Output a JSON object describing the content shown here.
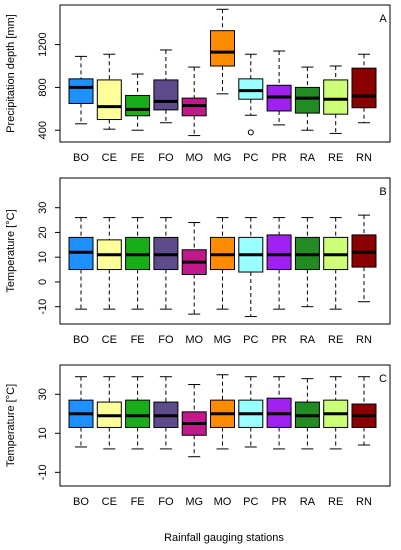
{
  "figure": {
    "xlabel": "Rainfall gauging stations"
  },
  "chart_data": [
    {
      "type": "boxplot",
      "panel_label": "A",
      "ylabel": "Precipitation depth [mm]",
      "ylim": [
        290,
        1570
      ],
      "yticks": [
        400,
        800,
        1200
      ],
      "categories": [
        "BO",
        "CE",
        "FE",
        "FO",
        "MO",
        "MG",
        "PC",
        "PR",
        "RA",
        "RE",
        "RN"
      ],
      "colors": [
        "#1e90ff",
        "#ffff99",
        "#1aad1a",
        "#5e4b8b",
        "#c0198a",
        "#ff8c00",
        "#99ffff",
        "#a020f0",
        "#228b22",
        "#ccff77",
        "#8b0000"
      ],
      "boxes": [
        {
          "min": 460,
          "q1": 650,
          "median": 800,
          "q3": 880,
          "max": 1090,
          "outliers": []
        },
        {
          "min": 410,
          "q1": 500,
          "median": 620,
          "q3": 870,
          "max": 1110,
          "outliers": []
        },
        {
          "min": 400,
          "q1": 535,
          "median": 595,
          "q3": 725,
          "max": 925,
          "outliers": []
        },
        {
          "min": 470,
          "q1": 590,
          "median": 670,
          "q3": 870,
          "max": 1150,
          "outliers": []
        },
        {
          "min": 350,
          "q1": 535,
          "median": 630,
          "q3": 700,
          "max": 990,
          "outliers": []
        },
        {
          "min": 740,
          "q1": 1000,
          "median": 1130,
          "q3": 1330,
          "max": 1530,
          "outliers": []
        },
        {
          "min": 540,
          "q1": 690,
          "median": 770,
          "q3": 880,
          "max": 1110,
          "outliers": [
            380
          ]
        },
        {
          "min": 450,
          "q1": 580,
          "median": 710,
          "q3": 820,
          "max": 1140,
          "outliers": []
        },
        {
          "min": 400,
          "q1": 560,
          "median": 700,
          "q3": 800,
          "max": 990,
          "outliers": []
        },
        {
          "min": 370,
          "q1": 550,
          "median": 690,
          "q3": 870,
          "max": 1000,
          "outliers": []
        },
        {
          "min": 470,
          "q1": 610,
          "median": 720,
          "q3": 980,
          "max": 1110,
          "outliers": []
        }
      ]
    },
    {
      "type": "boxplot",
      "panel_label": "B",
      "ylabel": "Temperature [°C]",
      "ylim": [
        -17,
        42
      ],
      "yticks": [
        -10,
        0,
        10,
        20,
        30
      ],
      "categories": [
        "BO",
        "CE",
        "FE",
        "FO",
        "MO",
        "MG",
        "PC",
        "PR",
        "RA",
        "RE",
        "RN"
      ],
      "colors": [
        "#1e90ff",
        "#ffff99",
        "#1aad1a",
        "#5e4b8b",
        "#c0198a",
        "#ff8c00",
        "#99ffff",
        "#a020f0",
        "#228b22",
        "#ccff77",
        "#8b0000"
      ],
      "boxes": [
        {
          "min": -11,
          "q1": 5,
          "median": 12,
          "q3": 18,
          "max": 26,
          "outliers": []
        },
        {
          "min": -11,
          "q1": 5,
          "median": 11,
          "q3": 17,
          "max": 26,
          "outliers": []
        },
        {
          "min": -11,
          "q1": 5,
          "median": 11,
          "q3": 18,
          "max": 26,
          "outliers": []
        },
        {
          "min": -11,
          "q1": 5,
          "median": 11,
          "q3": 18,
          "max": 26,
          "outliers": []
        },
        {
          "min": -13,
          "q1": 3,
          "median": 8,
          "q3": 13,
          "max": 24,
          "outliers": []
        },
        {
          "min": -11,
          "q1": 5,
          "median": 11,
          "q3": 18,
          "max": 26,
          "outliers": []
        },
        {
          "min": -14,
          "q1": 4,
          "median": 11,
          "q3": 18,
          "max": 26,
          "outliers": []
        },
        {
          "min": -11,
          "q1": 5,
          "median": 11,
          "q3": 19,
          "max": 26,
          "outliers": []
        },
        {
          "min": -10,
          "q1": 5,
          "median": 11,
          "q3": 18,
          "max": 26,
          "outliers": []
        },
        {
          "min": -11,
          "q1": 5,
          "median": 11,
          "q3": 18,
          "max": 26,
          "outliers": []
        },
        {
          "min": -8,
          "q1": 6,
          "median": 12,
          "q3": 19,
          "max": 27,
          "outliers": []
        }
      ]
    },
    {
      "type": "boxplot",
      "panel_label": "C",
      "ylabel": "Temperature [°C]",
      "ylim": [
        -17,
        45
      ],
      "yticks": [
        -10,
        10,
        30
      ],
      "categories": [
        "BO",
        "CE",
        "FE",
        "FO",
        "MG",
        "MO",
        "PC",
        "PR",
        "RA",
        "RE",
        "RN"
      ],
      "colors": [
        "#1e90ff",
        "#ffff99",
        "#1aad1a",
        "#5e4b8b",
        "#c0198a",
        "#ff8c00",
        "#99ffff",
        "#a020f0",
        "#228b22",
        "#ccff77",
        "#8b0000"
      ],
      "boxes": [
        {
          "min": 3,
          "q1": 13,
          "median": 20,
          "q3": 27,
          "max": 39,
          "outliers": []
        },
        {
          "min": 2,
          "q1": 13,
          "median": 19,
          "q3": 26,
          "max": 39,
          "outliers": []
        },
        {
          "min": 2,
          "q1": 13,
          "median": 19,
          "q3": 27,
          "max": 39,
          "outliers": []
        },
        {
          "min": 2,
          "q1": 13,
          "median": 19,
          "q3": 26,
          "max": 39,
          "outliers": []
        },
        {
          "min": -2,
          "q1": 9,
          "median": 15,
          "q3": 21,
          "max": 35,
          "outliers": []
        },
        {
          "min": 2,
          "q1": 13,
          "median": 20,
          "q3": 27,
          "max": 40,
          "outliers": []
        },
        {
          "min": 3,
          "q1": 13,
          "median": 20,
          "q3": 27,
          "max": 39,
          "outliers": []
        },
        {
          "min": 2,
          "q1": 13,
          "median": 20,
          "q3": 28,
          "max": 39,
          "outliers": []
        },
        {
          "min": 2,
          "q1": 13,
          "median": 19,
          "q3": 26,
          "max": 38,
          "outliers": []
        },
        {
          "min": 2,
          "q1": 13,
          "median": 20,
          "q3": 27,
          "max": 39,
          "outliers": []
        },
        {
          "min": 4,
          "q1": 13,
          "median": 19,
          "q3": 25,
          "max": 39,
          "outliers": []
        }
      ]
    }
  ]
}
